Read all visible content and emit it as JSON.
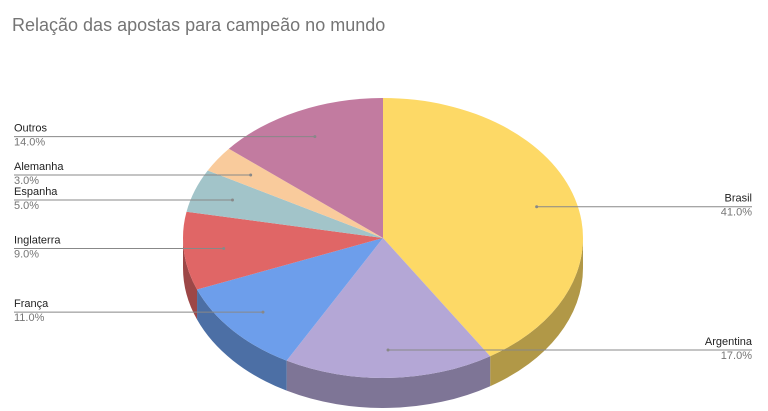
{
  "chart_data": {
    "type": "pie",
    "title": "Relação das apostas para campeão no mundo",
    "categories": [
      "Brasil",
      "Argentina",
      "França",
      "Inglaterra",
      "Espanha",
      "Alemanha",
      "Outros"
    ],
    "values": [
      41,
      17,
      11,
      9,
      5,
      3,
      14
    ],
    "value_labels": [
      "41.0%",
      "17.0%",
      "11.0%",
      "9.0%",
      "5.0%",
      "3.0%",
      "14.0%"
    ],
    "colors": [
      "#fdd966",
      "#b4a7d6",
      "#6d9eeb",
      "#e06666",
      "#a2c4c9",
      "#f9cb9c",
      "#c27ba0"
    ]
  }
}
